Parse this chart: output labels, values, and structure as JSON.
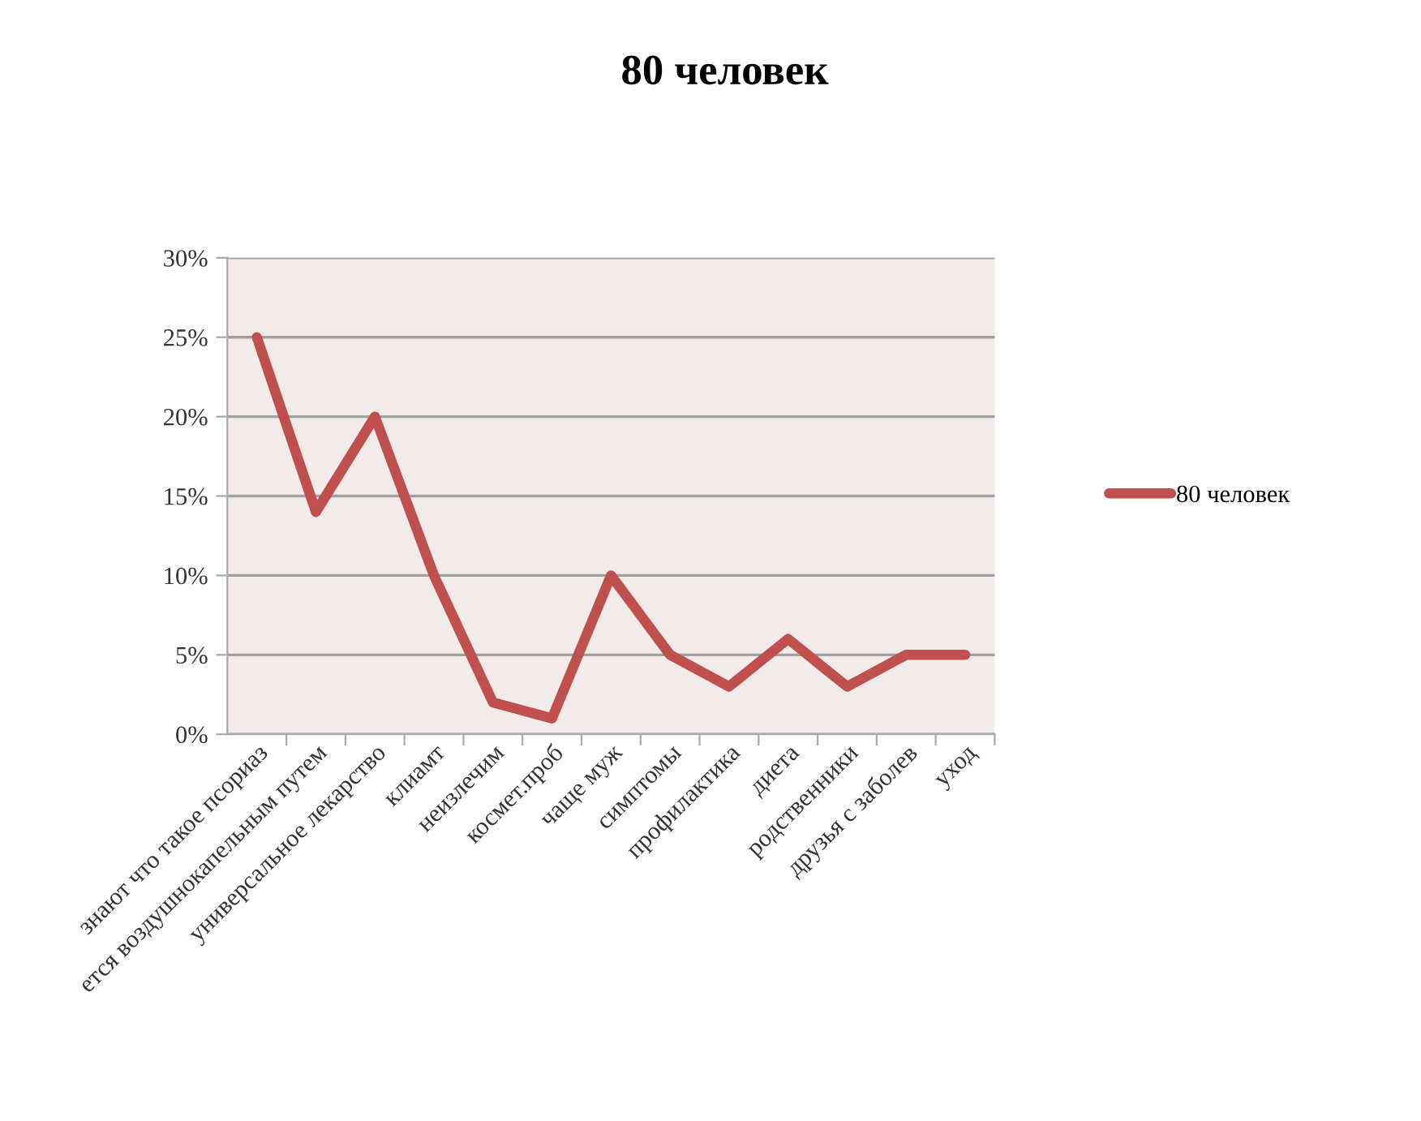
{
  "chart_data": {
    "type": "line",
    "title": "80 человек",
    "categories": [
      "знают что такое псориаз",
      "ется воздушнокапельным путем",
      "универсальное лекарство",
      "клиамт",
      "неизлечим",
      "космет.проб",
      "чаще муж",
      "симптомы",
      "профилактика",
      "диета",
      "родственники",
      "друзья с заболев",
      "уход"
    ],
    "series": [
      {
        "name": "80 человек",
        "color": "#c0504d",
        "values": [
          25,
          14,
          20,
          10,
          2,
          1,
          10,
          5,
          3,
          6,
          3,
          5,
          5
        ]
      }
    ],
    "ylim": [
      0,
      30
    ],
    "yticks": [
      {
        "value": 0,
        "label": "0%"
      },
      {
        "value": 5,
        "label": "5%"
      },
      {
        "value": 10,
        "label": "10%"
      },
      {
        "value": 15,
        "label": "15%"
      },
      {
        "value": 20,
        "label": "20%"
      },
      {
        "value": 25,
        "label": "25%"
      },
      {
        "value": 30,
        "label": "30%"
      }
    ],
    "grid": "y",
    "legend": "right",
    "marker": "none",
    "line_style": "solid"
  }
}
